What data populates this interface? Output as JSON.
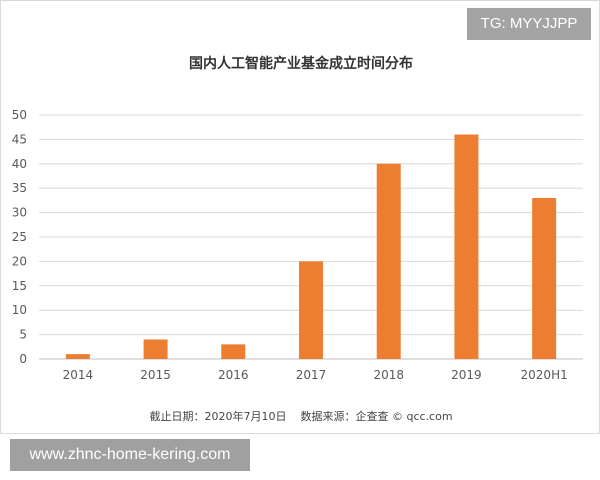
{
  "chart_data": {
    "type": "bar",
    "title": "国内人工智能产业基金成立时间分布",
    "categories": [
      "2014",
      "2015",
      "2016",
      "2017",
      "2018",
      "2019",
      "2020H1"
    ],
    "values": [
      1,
      4,
      3,
      20,
      40,
      46,
      33
    ],
    "ylim": [
      0,
      50
    ],
    "yticks": [
      0,
      5,
      10,
      15,
      20,
      25,
      30,
      35,
      40,
      45,
      50
    ],
    "xlabel": "",
    "ylabel": "",
    "grid": true,
    "bar_color": "#ed7d31",
    "grid_color": "#d9d9d9"
  },
  "footnote": {
    "date": "截止日期：2020年7月10日",
    "source": "数据来源：企查查 © qcc.com"
  },
  "watermarks": {
    "tg": "TG: MYYJJPP",
    "url": "www.zhnc-home-kering.com"
  }
}
